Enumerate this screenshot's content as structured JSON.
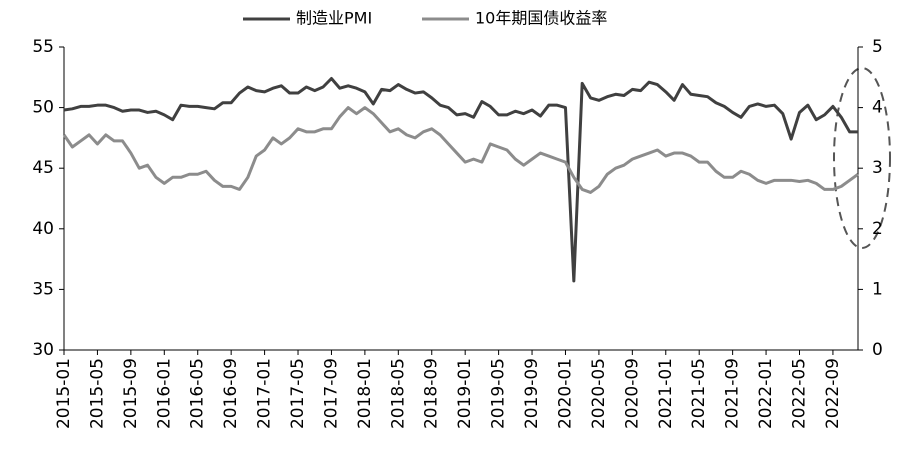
{
  "chart_data": {
    "type": "line",
    "categories": [
      "2015-01",
      null,
      null,
      null,
      "2015-05",
      null,
      null,
      null,
      "2015-09",
      null,
      null,
      null,
      "2016-01",
      null,
      null,
      null,
      "2016-05",
      null,
      null,
      null,
      "2016-09",
      null,
      null,
      null,
      "2017-01",
      null,
      null,
      null,
      "2017-05",
      null,
      null,
      null,
      "2017-09",
      null,
      null,
      null,
      "2018-01",
      null,
      null,
      null,
      "2018-05",
      null,
      null,
      null,
      "2018-09",
      null,
      null,
      null,
      "2019-01",
      null,
      null,
      null,
      "2019-05",
      null,
      null,
      null,
      "2019-09",
      null,
      null,
      null,
      "2020-01",
      null,
      null,
      null,
      "2020-05",
      null,
      null,
      null,
      "2020-09",
      null,
      null,
      null,
      "2021-01",
      null,
      null,
      null,
      "2021-05",
      null,
      null,
      null,
      "2021-09",
      null,
      null,
      null,
      "2022-01",
      null,
      null,
      null,
      "2022-05",
      null,
      null,
      null,
      "2022-09",
      null,
      null,
      null
    ],
    "series": [
      {
        "name": "制造业PMI",
        "color": "#404040",
        "axis": "y",
        "values": [
          49.8,
          49.9,
          50.1,
          50.1,
          50.2,
          50.2,
          50.0,
          49.7,
          49.8,
          49.8,
          49.6,
          49.7,
          49.4,
          49.0,
          50.2,
          50.1,
          50.1,
          50.0,
          49.9,
          50.4,
          50.4,
          51.2,
          51.7,
          51.4,
          51.3,
          51.6,
          51.8,
          51.2,
          51.2,
          51.7,
          51.4,
          51.7,
          52.4,
          51.6,
          51.8,
          51.6,
          51.3,
          50.3,
          51.5,
          51.4,
          51.9,
          51.5,
          51.2,
          51.3,
          50.8,
          50.2,
          50.0,
          49.4,
          49.5,
          49.2,
          50.5,
          50.1,
          49.4,
          49.4,
          49.7,
          49.5,
          49.8,
          49.3,
          50.2,
          50.2,
          50.0,
          35.7,
          52.0,
          50.8,
          50.6,
          50.9,
          51.1,
          51.0,
          51.5,
          51.4,
          52.1,
          51.9,
          51.3,
          50.6,
          51.9,
          51.1,
          51.0,
          50.9,
          50.4,
          50.1,
          49.6,
          49.2,
          50.1,
          50.3,
          50.1,
          50.2,
          49.5,
          47.4,
          49.6,
          50.2,
          49.0,
          49.4,
          50.1,
          49.2,
          48.0,
          48.0
        ]
      },
      {
        "name": "10年期国债收益率",
        "color": "#8c8c8c",
        "axis": "y2",
        "values": [
          3.55,
          3.35,
          3.45,
          3.55,
          3.4,
          3.55,
          3.45,
          3.45,
          3.25,
          3.0,
          3.05,
          2.85,
          2.75,
          2.85,
          2.85,
          2.9,
          2.9,
          2.95,
          2.8,
          2.7,
          2.7,
          2.65,
          2.85,
          3.2,
          3.3,
          3.5,
          3.4,
          3.5,
          3.65,
          3.6,
          3.6,
          3.65,
          3.65,
          3.85,
          4.0,
          3.9,
          4.0,
          3.9,
          3.75,
          3.6,
          3.65,
          3.55,
          3.5,
          3.6,
          3.65,
          3.55,
          3.4,
          3.25,
          3.1,
          3.15,
          3.1,
          3.4,
          3.35,
          3.3,
          3.15,
          3.05,
          3.15,
          3.25,
          3.2,
          3.15,
          3.1,
          2.85,
          2.65,
          2.6,
          2.7,
          2.9,
          3.0,
          3.05,
          3.15,
          3.2,
          3.25,
          3.3,
          3.2,
          3.25,
          3.25,
          3.2,
          3.1,
          3.1,
          2.95,
          2.85,
          2.85,
          2.95,
          2.9,
          2.8,
          2.75,
          2.8,
          2.8,
          2.8,
          2.78,
          2.8,
          2.75,
          2.65,
          2.65,
          2.7,
          2.8,
          2.9
        ]
      }
    ],
    "ylim": [
      30,
      55
    ],
    "yticks": [
      30,
      35,
      40,
      45,
      50,
      55
    ],
    "y2lim": [
      0,
      5
    ],
    "y2ticks": [
      0,
      1,
      2,
      3,
      4,
      5
    ],
    "legend": "top"
  }
}
